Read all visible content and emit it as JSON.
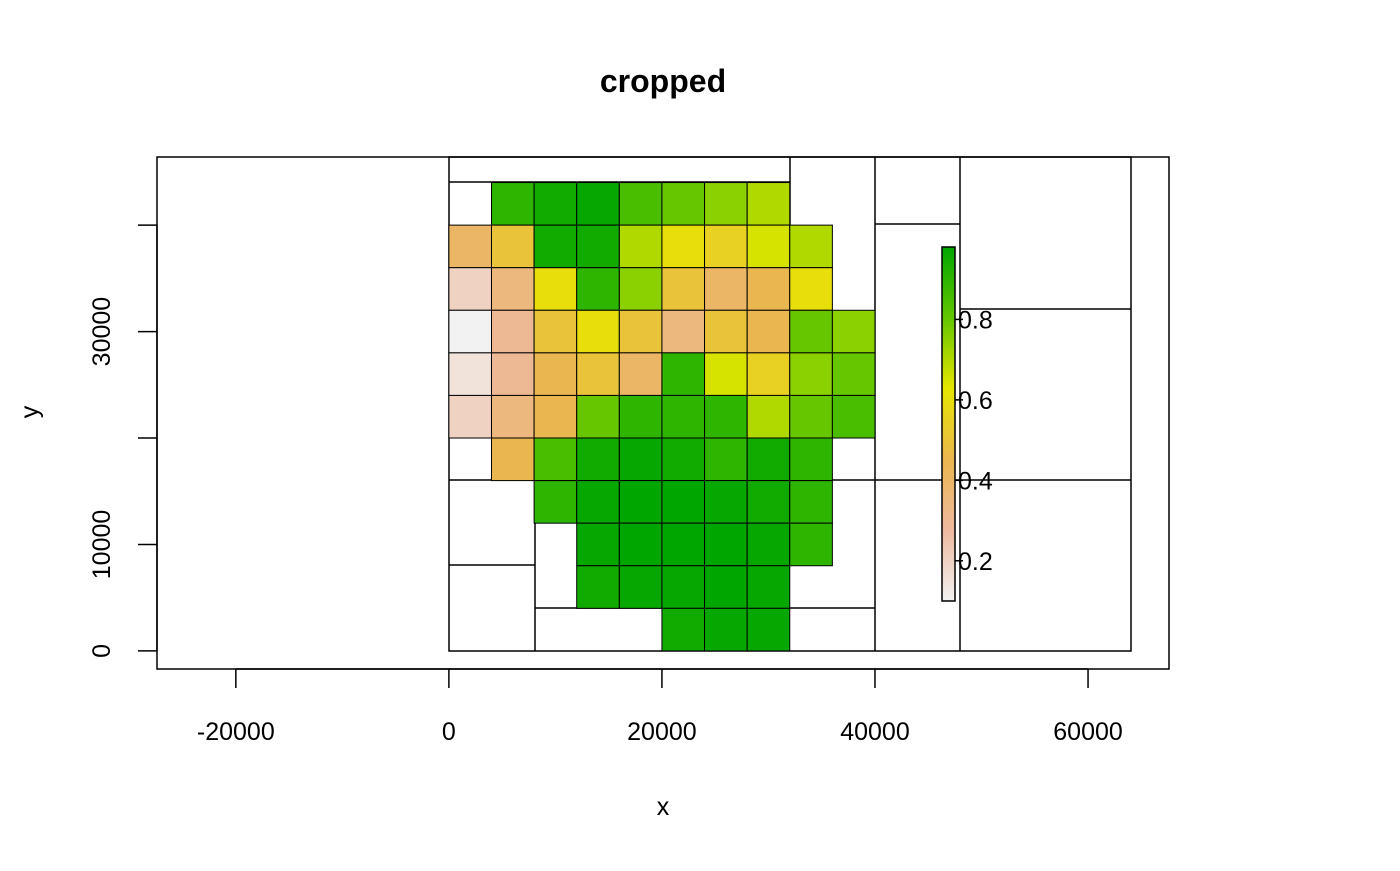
{
  "chart_data": {
    "type": "raster",
    "title": "cropped",
    "x_label": "x",
    "y_label": "y",
    "xlim": [
      -27400,
      67600
    ],
    "ylim": [
      -1700,
      46400
    ],
    "xticks": [
      -20000,
      0,
      20000,
      40000,
      60000
    ],
    "yticks": [
      0,
      10000,
      {
        "value": 20000,
        "label": null
      },
      30000,
      {
        "value": 40000,
        "label": null
      }
    ],
    "x": [
      2000,
      6000,
      10000,
      14000,
      18000,
      22000,
      26000,
      30000,
      34000,
      38000
    ],
    "y": [
      42000,
      38000,
      34000,
      30000,
      26000,
      22000,
      18000,
      14000,
      10000,
      6000,
      2000
    ],
    "values": [
      [
        null,
        0.9,
        0.95,
        0.97,
        0.85,
        0.8,
        0.75,
        0.7,
        null,
        null
      ],
      [
        0.4,
        0.5,
        0.95,
        0.95,
        0.7,
        0.6,
        0.55,
        0.65,
        0.7,
        null
      ],
      [
        0.2,
        0.35,
        0.6,
        0.9,
        0.75,
        0.5,
        0.4,
        0.45,
        0.6,
        null
      ],
      [
        0.1,
        0.3,
        0.5,
        0.6,
        0.5,
        0.35,
        0.5,
        0.45,
        0.8,
        0.75
      ],
      [
        0.15,
        0.3,
        0.45,
        0.5,
        0.4,
        0.9,
        0.65,
        0.55,
        0.75,
        0.8
      ],
      [
        0.2,
        0.35,
        0.45,
        0.8,
        0.9,
        0.9,
        0.9,
        0.7,
        0.8,
        0.85
      ],
      [
        null,
        0.45,
        0.85,
        0.95,
        0.97,
        0.95,
        0.9,
        0.95,
        0.9,
        null
      ],
      [
        null,
        null,
        0.9,
        0.97,
        0.98,
        0.98,
        0.97,
        0.95,
        0.9,
        null
      ],
      [
        null,
        null,
        null,
        0.97,
        0.98,
        0.98,
        0.98,
        0.97,
        0.9,
        null
      ],
      [
        null,
        null,
        null,
        0.95,
        0.97,
        0.97,
        0.98,
        0.97,
        null,
        null
      ],
      [
        null,
        null,
        null,
        null,
        null,
        0.95,
        0.97,
        0.97,
        null,
        null
      ]
    ],
    "colorbar": {
      "lim": [
        0.1,
        0.98
      ],
      "ticks": [
        0.2,
        0.4,
        0.6,
        0.8
      ],
      "colors": [
        "#F2F2F2",
        "#EEB99F",
        "#EAB64E",
        "#E6E600",
        "#63C600",
        "#00A600"
      ]
    }
  }
}
